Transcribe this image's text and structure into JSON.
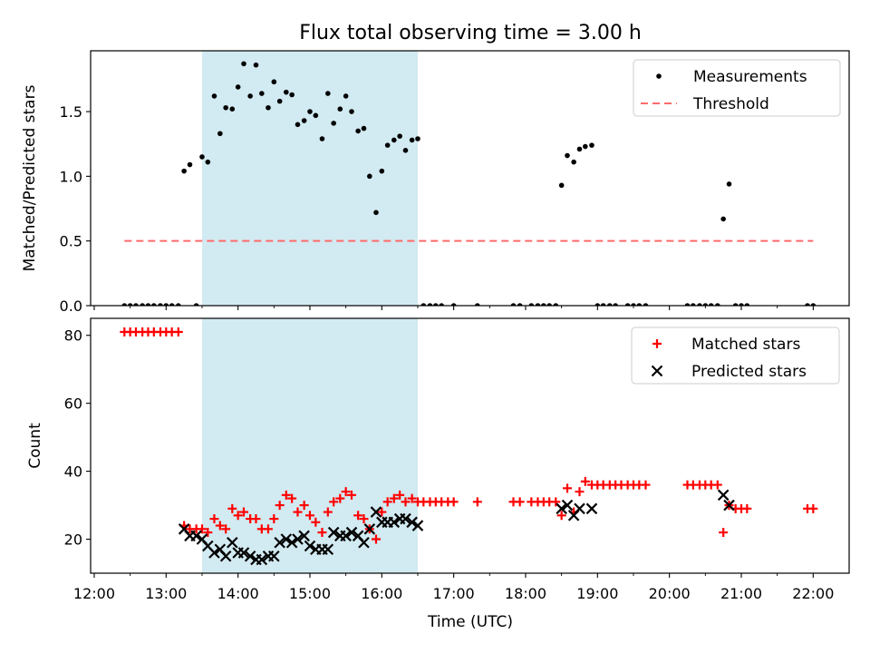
{
  "title": "Flux total observing time = 3.00 h",
  "colors": {
    "shade": "#add8e6",
    "measurements": "#000000",
    "threshold": "#ff6b6b",
    "matched": "#ff0000",
    "predicted": "#000000"
  },
  "chart_data": [
    {
      "type": "scatter",
      "ylabel": "Matched/Predicted stars",
      "xlim": [
        11.95,
        22.5
      ],
      "ylim": [
        0,
        1.97
      ],
      "yticks": [
        0.0,
        0.5,
        1.0,
        1.5
      ],
      "ytick_labels": [
        "0.0",
        "0.5",
        "1.0",
        "1.5"
      ],
      "shaded_region": [
        13.5,
        16.5
      ],
      "legend_position": "top-right",
      "legend": [
        "Measurements",
        "Threshold"
      ],
      "threshold": {
        "name": "Threshold",
        "x": [
          12.42,
          22.0
        ],
        "y": 0.5,
        "style": "dashed"
      },
      "series": [
        {
          "name": "Measurements",
          "marker": "dot",
          "points": [
            [
              12.42,
              0
            ],
            [
              12.5,
              0
            ],
            [
              12.58,
              0
            ],
            [
              12.67,
              0
            ],
            [
              12.75,
              0
            ],
            [
              12.83,
              0
            ],
            [
              12.92,
              0
            ],
            [
              13.0,
              0
            ],
            [
              13.08,
              0
            ],
            [
              13.17,
              0
            ],
            [
              13.25,
              1.04
            ],
            [
              13.33,
              1.09
            ],
            [
              13.42,
              0
            ],
            [
              13.5,
              1.15
            ],
            [
              13.58,
              1.11
            ],
            [
              13.67,
              1.62
            ],
            [
              13.75,
              1.33
            ],
            [
              13.83,
              1.53
            ],
            [
              13.92,
              1.52
            ],
            [
              14.0,
              1.69
            ],
            [
              14.08,
              1.87
            ],
            [
              14.17,
              1.62
            ],
            [
              14.25,
              1.86
            ],
            [
              14.33,
              1.64
            ],
            [
              14.42,
              1.53
            ],
            [
              14.5,
              1.73
            ],
            [
              14.58,
              1.58
            ],
            [
              14.67,
              1.65
            ],
            [
              14.75,
              1.63
            ],
            [
              14.83,
              1.4
            ],
            [
              14.92,
              1.43
            ],
            [
              15.0,
              1.5
            ],
            [
              15.08,
              1.47
            ],
            [
              15.17,
              1.29
            ],
            [
              15.25,
              1.64
            ],
            [
              15.33,
              1.41
            ],
            [
              15.42,
              1.52
            ],
            [
              15.5,
              1.62
            ],
            [
              15.58,
              1.5
            ],
            [
              15.67,
              1.35
            ],
            [
              15.75,
              1.37
            ],
            [
              15.83,
              1.0
            ],
            [
              15.92,
              0.72
            ],
            [
              16.0,
              1.04
            ],
            [
              16.08,
              1.24
            ],
            [
              16.17,
              1.28
            ],
            [
              16.25,
              1.31
            ],
            [
              16.33,
              1.2
            ],
            [
              16.42,
              1.28
            ],
            [
              16.5,
              1.29
            ],
            [
              16.58,
              0
            ],
            [
              16.67,
              0
            ],
            [
              16.75,
              0
            ],
            [
              16.83,
              0
            ],
            [
              17.0,
              0
            ],
            [
              17.33,
              0
            ],
            [
              17.83,
              0
            ],
            [
              17.92,
              0
            ],
            [
              18.08,
              0
            ],
            [
              18.17,
              0
            ],
            [
              18.25,
              0
            ],
            [
              18.33,
              0
            ],
            [
              18.42,
              0
            ],
            [
              18.5,
              0.93
            ],
            [
              18.58,
              1.16
            ],
            [
              18.67,
              1.11
            ],
            [
              18.75,
              1.21
            ],
            [
              18.83,
              1.23
            ],
            [
              18.92,
              1.24
            ],
            [
              19.0,
              0
            ],
            [
              19.08,
              0
            ],
            [
              19.17,
              0
            ],
            [
              19.25,
              0
            ],
            [
              19.42,
              0
            ],
            [
              19.5,
              0
            ],
            [
              19.58,
              0
            ],
            [
              19.67,
              0
            ],
            [
              20.25,
              0
            ],
            [
              20.33,
              0
            ],
            [
              20.42,
              0
            ],
            [
              20.5,
              0
            ],
            [
              20.58,
              0
            ],
            [
              20.67,
              0
            ],
            [
              20.75,
              0.67
            ],
            [
              20.83,
              0.94
            ],
            [
              20.92,
              0
            ],
            [
              21.0,
              0
            ],
            [
              21.08,
              0
            ],
            [
              21.92,
              0
            ],
            [
              22.0,
              0
            ]
          ]
        }
      ]
    },
    {
      "type": "scatter",
      "ylabel": "Count",
      "xlabel": "Time (UTC)",
      "xlim": [
        11.95,
        22.5
      ],
      "ylim": [
        10,
        85
      ],
      "yticks": [
        20,
        40,
        60,
        80
      ],
      "ytick_labels": [
        "20",
        "40",
        "60",
        "80"
      ],
      "xticks": [
        12,
        13,
        14,
        15,
        16,
        17,
        18,
        19,
        20,
        21,
        22
      ],
      "xtick_labels": [
        "12:00",
        "13:00",
        "14:00",
        "15:00",
        "16:00",
        "17:00",
        "18:00",
        "19:00",
        "20:00",
        "21:00",
        "22:00"
      ],
      "shaded_region": [
        13.5,
        16.5
      ],
      "legend_position": "top-right",
      "legend": [
        "Matched stars",
        "Predicted stars"
      ],
      "series": [
        {
          "name": "Matched stars",
          "marker": "plus",
          "points": [
            [
              12.42,
              81
            ],
            [
              12.5,
              81
            ],
            [
              12.58,
              81
            ],
            [
              12.67,
              81
            ],
            [
              12.75,
              81
            ],
            [
              12.83,
              81
            ],
            [
              12.92,
              81
            ],
            [
              13.0,
              81
            ],
            [
              13.08,
              81
            ],
            [
              13.17,
              81
            ],
            [
              13.25,
              24
            ],
            [
              13.33,
              23
            ],
            [
              13.42,
              23
            ],
            [
              13.5,
              23
            ],
            [
              13.58,
              22
            ],
            [
              13.67,
              26
            ],
            [
              13.75,
              24
            ],
            [
              13.83,
              23
            ],
            [
              13.92,
              29
            ],
            [
              14.0,
              27
            ],
            [
              14.08,
              28
            ],
            [
              14.17,
              26
            ],
            [
              14.25,
              26
            ],
            [
              14.33,
              23
            ],
            [
              14.42,
              23
            ],
            [
              14.5,
              26
            ],
            [
              14.58,
              30
            ],
            [
              14.67,
              33
            ],
            [
              14.75,
              32
            ],
            [
              14.83,
              28
            ],
            [
              14.92,
              30
            ],
            [
              15.0,
              27
            ],
            [
              15.08,
              25
            ],
            [
              15.17,
              22
            ],
            [
              15.25,
              28
            ],
            [
              15.33,
              31
            ],
            [
              15.42,
              32
            ],
            [
              15.5,
              34
            ],
            [
              15.58,
              33
            ],
            [
              15.67,
              27
            ],
            [
              15.75,
              26
            ],
            [
              15.83,
              23
            ],
            [
              15.92,
              20
            ],
            [
              16.0,
              28
            ],
            [
              16.08,
              31
            ],
            [
              16.17,
              32
            ],
            [
              16.25,
              33
            ],
            [
              16.33,
              31
            ],
            [
              16.42,
              32
            ],
            [
              16.5,
              31
            ],
            [
              16.58,
              31
            ],
            [
              16.67,
              31
            ],
            [
              16.75,
              31
            ],
            [
              16.83,
              31
            ],
            [
              16.92,
              31
            ],
            [
              17.0,
              31
            ],
            [
              17.33,
              31
            ],
            [
              17.83,
              31
            ],
            [
              17.92,
              31
            ],
            [
              18.08,
              31
            ],
            [
              18.17,
              31
            ],
            [
              18.25,
              31
            ],
            [
              18.33,
              31
            ],
            [
              18.42,
              31
            ],
            [
              18.5,
              27
            ],
            [
              18.58,
              35
            ],
            [
              18.67,
              28
            ],
            [
              18.75,
              34
            ],
            [
              18.83,
              37
            ],
            [
              18.92,
              36
            ],
            [
              19.0,
              36
            ],
            [
              19.08,
              36
            ],
            [
              19.17,
              36
            ],
            [
              19.25,
              36
            ],
            [
              19.33,
              36
            ],
            [
              19.42,
              36
            ],
            [
              19.5,
              36
            ],
            [
              19.58,
              36
            ],
            [
              19.67,
              36
            ],
            [
              20.25,
              36
            ],
            [
              20.33,
              36
            ],
            [
              20.42,
              36
            ],
            [
              20.5,
              36
            ],
            [
              20.58,
              36
            ],
            [
              20.67,
              36
            ],
            [
              20.75,
              22
            ],
            [
              20.83,
              30
            ],
            [
              20.92,
              29
            ],
            [
              21.0,
              29
            ],
            [
              21.08,
              29
            ],
            [
              21.92,
              29
            ],
            [
              22.0,
              29
            ]
          ]
        },
        {
          "name": "Predicted stars",
          "marker": "x",
          "points": [
            [
              13.25,
              23
            ],
            [
              13.33,
              21
            ],
            [
              13.42,
              21
            ],
            [
              13.5,
              20
            ],
            [
              13.58,
              18
            ],
            [
              13.67,
              16
            ],
            [
              13.75,
              17
            ],
            [
              13.83,
              15
            ],
            [
              13.92,
              19
            ],
            [
              14.0,
              16
            ],
            [
              14.08,
              16
            ],
            [
              14.17,
              15
            ],
            [
              14.25,
              14
            ],
            [
              14.33,
              14
            ],
            [
              14.42,
              15
            ],
            [
              14.5,
              15
            ],
            [
              14.58,
              19
            ],
            [
              14.67,
              20
            ],
            [
              14.75,
              19
            ],
            [
              14.83,
              20
            ],
            [
              14.92,
              21
            ],
            [
              15.0,
              18
            ],
            [
              15.08,
              17
            ],
            [
              15.17,
              17
            ],
            [
              15.25,
              17
            ],
            [
              15.33,
              22
            ],
            [
              15.42,
              21
            ],
            [
              15.5,
              21
            ],
            [
              15.58,
              22
            ],
            [
              15.67,
              21
            ],
            [
              15.75,
              19
            ],
            [
              15.83,
              23
            ],
            [
              15.92,
              28
            ],
            [
              16.0,
              25
            ],
            [
              16.08,
              25
            ],
            [
              16.17,
              25
            ],
            [
              16.25,
              26
            ],
            [
              16.33,
              26
            ],
            [
              16.42,
              25
            ],
            [
              16.5,
              24
            ],
            [
              18.5,
              29
            ],
            [
              18.58,
              30
            ],
            [
              18.67,
              27
            ],
            [
              18.75,
              29
            ],
            [
              18.92,
              29
            ],
            [
              20.75,
              33
            ],
            [
              20.83,
              30
            ]
          ]
        }
      ]
    }
  ]
}
